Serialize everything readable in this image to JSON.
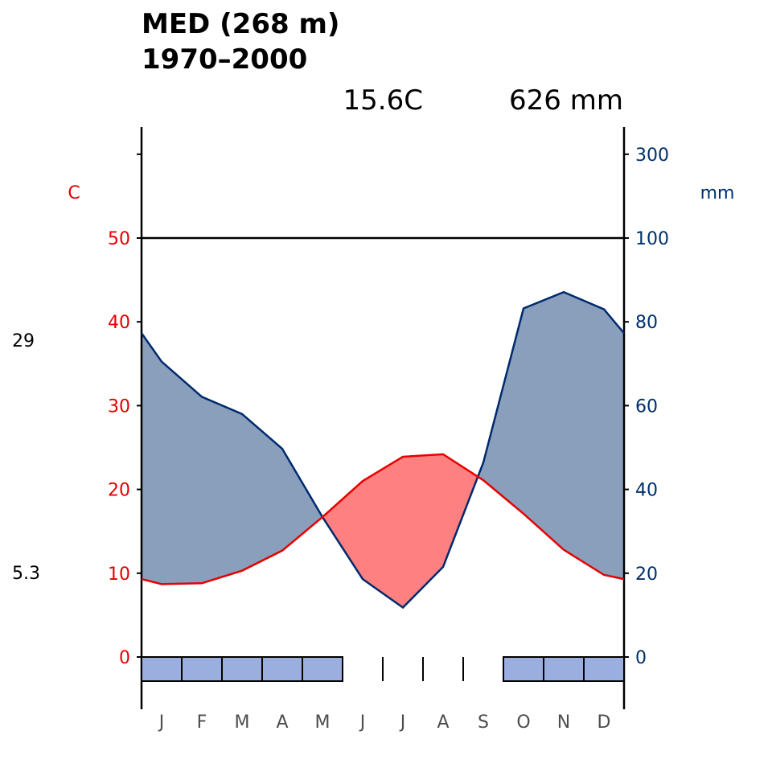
{
  "title": {
    "line1": "MED (268 m)",
    "line2": "1970–2000"
  },
  "stats": {
    "mean_temp": "15.6C",
    "annual_precip": "626 mm"
  },
  "colors": {
    "temperature": "#e60000",
    "precipitation": "#002a6e",
    "temp_area": "#ff8080",
    "precip_area": "#8a9fbc",
    "frost_box": "#9aaee0",
    "right_ticks": "#00306a",
    "month_text": "#4d4d4d"
  },
  "chart_data": {
    "type": "climate_diagram",
    "months": [
      "J",
      "F",
      "M",
      "A",
      "M",
      "J",
      "J",
      "A",
      "S",
      "O",
      "N",
      "D"
    ],
    "temperature_c": [
      8.7,
      8.8,
      10.3,
      12.7,
      16.7,
      21.0,
      23.9,
      24.2,
      21.1,
      17.1,
      12.8,
      9.8
    ],
    "precipitation_mm": [
      70.5,
      62.1,
      58.0,
      49.7,
      33.4,
      18.6,
      11.8,
      21.5,
      46.4,
      83.2,
      87.1,
      83.0
    ],
    "edge_values": {
      "temp_start": 9.3,
      "temp_end": 9.3,
      "precip_start": 77.3,
      "precip_end": 77.3
    },
    "frost_months": [
      true,
      true,
      true,
      true,
      true,
      false,
      false,
      false,
      false,
      true,
      true,
      true
    ],
    "left_axis": {
      "label": "C",
      "ticks": [
        "0",
        "10",
        "20",
        "30",
        "40",
        "50"
      ],
      "range": [
        0,
        60
      ]
    },
    "right_axis": {
      "label": "mm",
      "ticks": [
        "0",
        "20",
        "40",
        "60",
        "80",
        "100",
        "300"
      ],
      "range_scaled": [
        0,
        120
      ],
      "scale_break": 100
    },
    "side_labels": {
      "max_warm": "29",
      "min_cold": "5.3"
    }
  }
}
